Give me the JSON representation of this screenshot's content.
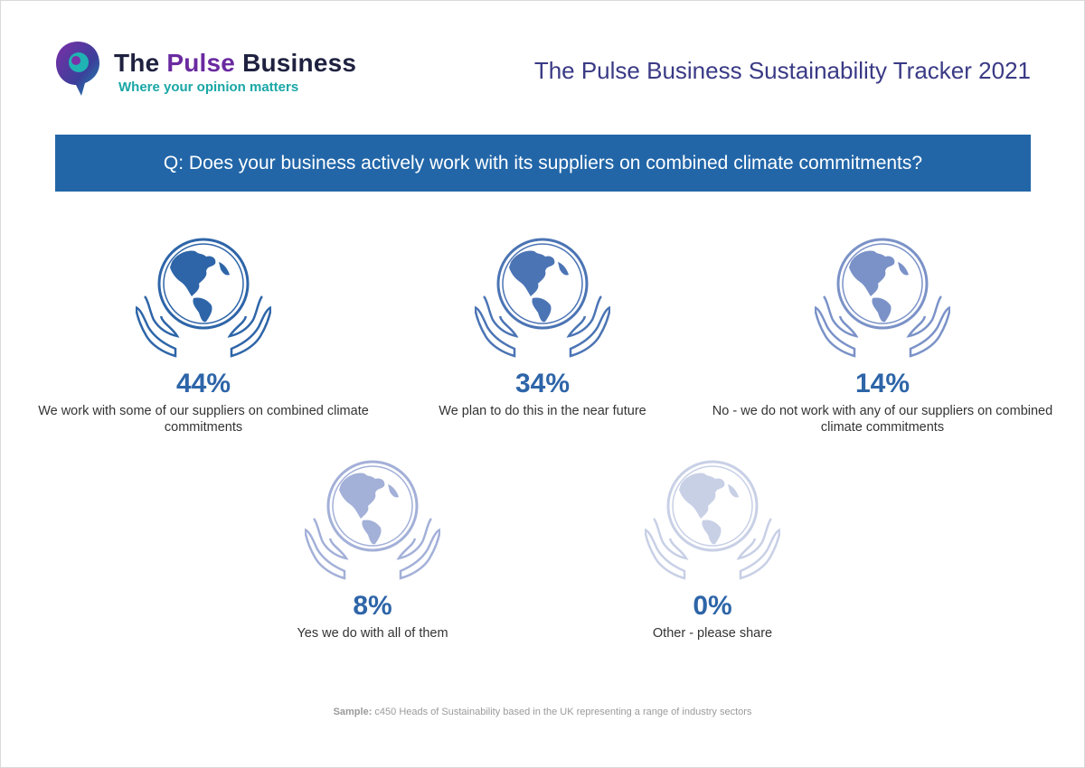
{
  "brand": {
    "name_part1": "The",
    "name_accent": "Pulse",
    "name_part2": "Business",
    "tagline": "Where your opinion matters"
  },
  "report_title": "The Pulse Business Sustainability Tracker 2021",
  "question": "Q: Does your business actively work with its suppliers on combined climate commitments?",
  "colors": {
    "question_bar": "#2266a8",
    "title": "#3a3a86",
    "tagline": "#1aa6a6",
    "brand_accent": "#6a2aa0"
  },
  "results": [
    {
      "percent": "44%",
      "label": "We work with some of our suppliers on combined climate commitments",
      "icon": "globe-in-hands-icon",
      "color": "#2e65a8"
    },
    {
      "percent": "34%",
      "label": "We plan to do this in the near future",
      "icon": "globe-in-hands-icon",
      "color": "#4b74b4"
    },
    {
      "percent": "14%",
      "label": "No - we do not work with any of our suppliers on combined climate commitments",
      "icon": "globe-in-hands-icon",
      "color": "#7b92c8"
    },
    {
      "percent": "8%",
      "label": "Yes we do with all of them",
      "icon": "globe-in-hands-icon",
      "color": "#a3b0d8"
    },
    {
      "percent": "0%",
      "label": "Other - please share",
      "icon": "globe-in-hands-icon",
      "color": "#c8d0e6"
    }
  ],
  "footnote": {
    "label": "Sample:",
    "text": " c450 Heads of Sustainability based in the UK representing a range of industry sectors"
  }
}
